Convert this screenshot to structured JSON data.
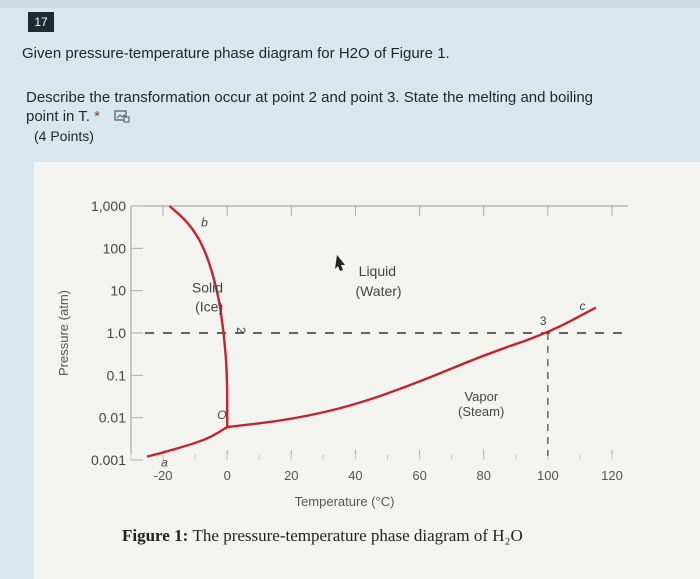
{
  "question": {
    "number": "17",
    "title": "Given pressure-temperature phase diagram for H2O of Figure 1.",
    "description": "Describe the transformation occur at point 2 and point 3. State the melting and boiling point in T.",
    "required_mark": "*",
    "points": "(4 Points)",
    "icon": "image-icon"
  },
  "figure": {
    "caption_bold": "Figure 1:",
    "caption_rest": "The pressure-temperature phase diagram of H₂O",
    "ylabel": "Pressure (atm)",
    "xlabel": "Temperature (°C)",
    "region_labels": {
      "solid": "Solid",
      "solid_sub": "(Ice)",
      "liquid": "Liquid",
      "liquid_sub": "(Water)",
      "vapor": "Vapor",
      "vapor_sub": "(Steam)"
    },
    "point_labels": [
      "a",
      "b",
      "O",
      "2",
      "3",
      "c"
    ],
    "curve_color": "#c0262b"
  },
  "chart_data": {
    "type": "line",
    "xlabel": "Temperature (°C)",
    "ylabel": "Pressure (atm)",
    "x_ticks": [
      "-20",
      "0",
      "20",
      "40",
      "60",
      "80",
      "100",
      "120"
    ],
    "y_ticks": [
      "0.001",
      "0.01",
      "0.1",
      "1.0",
      "10",
      "100",
      "1,000"
    ],
    "xlim": [
      -30,
      125
    ],
    "ylim": [
      0.001,
      1000
    ],
    "y_scale": "log",
    "series": [
      {
        "x": [
          -25,
          -20,
          -10,
          -5,
          0
        ],
        "y": [
          0.0012,
          0.0015,
          0.0025,
          0.0035,
          0.006
        ]
      },
      {
        "x": [
          0,
          0,
          -1,
          -3,
          -7,
          -12,
          -18
        ],
        "y": [
          0.006,
          0.1,
          1.0,
          10,
          100,
          400,
          1000
        ]
      },
      {
        "x": [
          0,
          20,
          40,
          60,
          80,
          100,
          115
        ],
        "y": [
          0.006,
          0.009,
          0.02,
          0.07,
          0.3,
          1.0,
          4.0
        ]
      }
    ],
    "reference_line": {
      "y": 1.0,
      "style": "dashed"
    },
    "points": [
      {
        "label": "a",
        "x": -20,
        "y": 0.0015
      },
      {
        "label": "b",
        "x": -10,
        "y": 500
      },
      {
        "label": "O",
        "x": 0,
        "y": 0.006
      },
      {
        "label": "2",
        "x": 0,
        "y": 1.0
      },
      {
        "label": "3",
        "x": 100,
        "y": 1.0
      },
      {
        "label": "c",
        "x": 108,
        "y": 2.5
      }
    ],
    "grid": false
  }
}
